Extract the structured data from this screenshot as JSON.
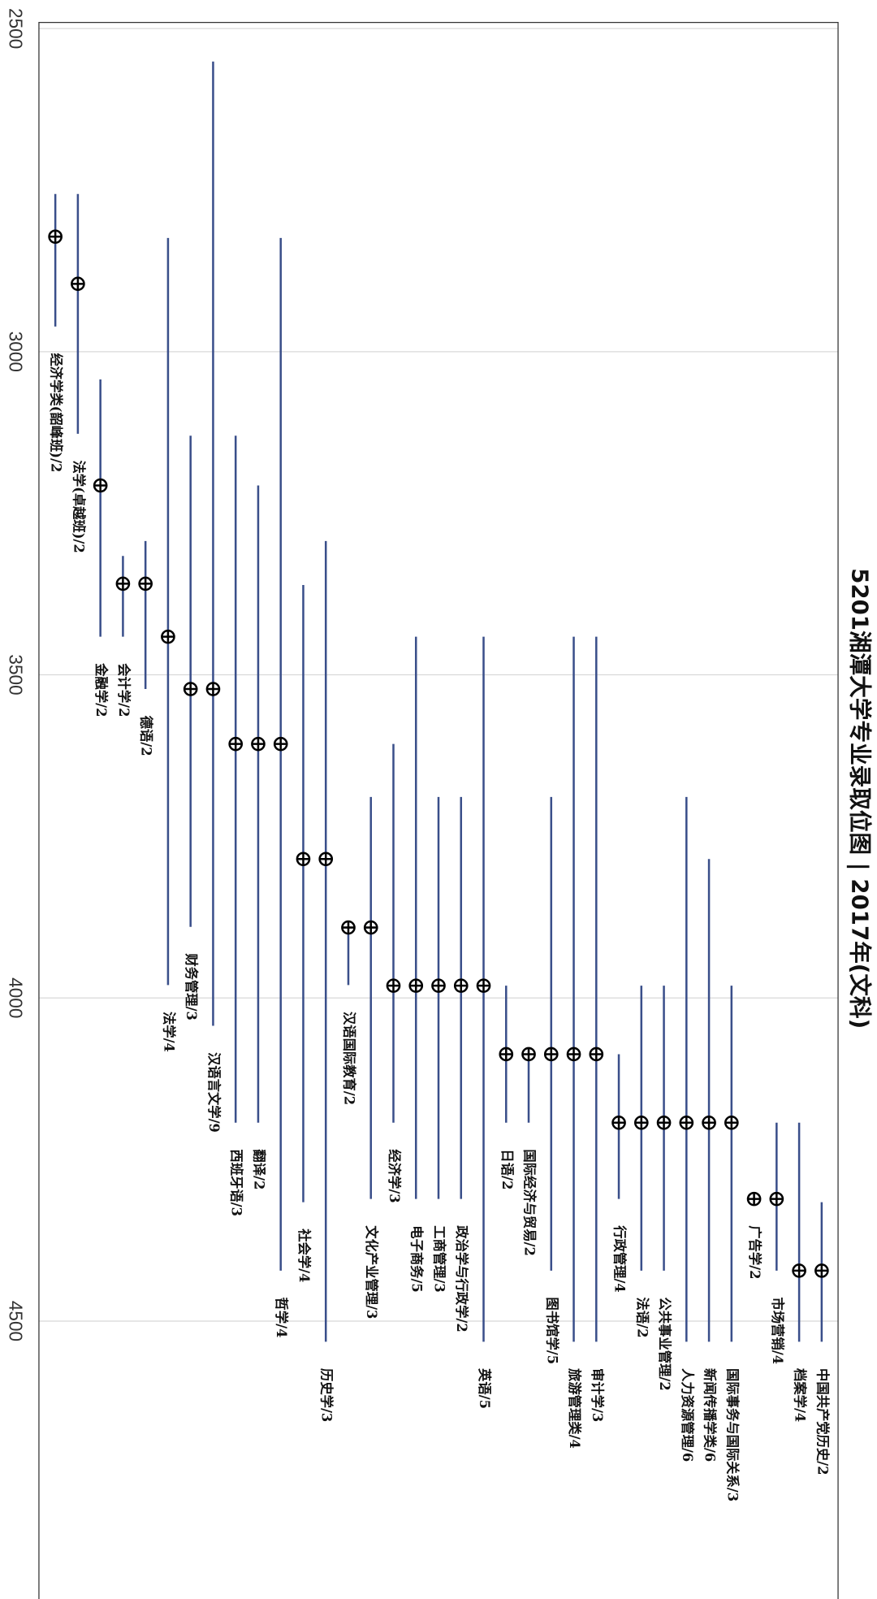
{
  "chart_data": {
    "type": "range",
    "title": "5201湘潭大学专业录取位图 | 2017年(文科)",
    "categories": [
      "经济学类(韶峰班)/2",
      "法学(卓越班)/2",
      "金融学/2",
      "会计学/2",
      "德语/2",
      "法学/4",
      "财务管理/3",
      "汉语言文学/9",
      "西班牙语/3",
      "翻译/2",
      "哲学/4",
      "社会学/4",
      "历史学/3",
      "汉语国际教育/2",
      "文化产业管理/3",
      "经济学/3",
      "电子商务/5",
      "工商管理/3",
      "政治学与行政学/2",
      "英语/5",
      "日语/2",
      "国际经济与贸易/2",
      "图书馆学/5",
      "旅游管理类/4",
      "审计学/3",
      "行政管理/4",
      "法语/2",
      "公共事业管理/2",
      "人力资源管理/6",
      "新闻传播学类/6",
      "国际事务与国际关系/3",
      "广告学/2",
      "市场营销/4",
      "档案学/4",
      "中国共产党历史/2"
    ],
    "values": [
      2822,
      2895,
      3207,
      3359,
      3359,
      3441,
      3522,
      3522,
      3607,
      3607,
      3607,
      3785,
      3785,
      3891,
      3891,
      3981,
      3981,
      3981,
      3981,
      3981,
      4087,
      4087,
      4087,
      4087,
      4087,
      4193,
      4193,
      4193,
      4193,
      4193,
      4193,
      4311,
      4311,
      4422,
      4422
    ],
    "low": [
      2756,
      2756,
      3043,
      3316,
      3293,
      2824,
      3130,
      2551,
      3130,
      3207,
      2824,
      3361,
      3293,
      3891,
      3689,
      3607,
      3441,
      3689,
      3689,
      3441,
      3981,
      4087,
      3689,
      3441,
      3441,
      4087,
      3981,
      3981,
      3689,
      3785,
      3981,
      4311,
      4193,
      4193,
      4316
    ],
    "high": [
      2961,
      3127,
      3441,
      3441,
      3522,
      3980,
      3890,
      4043,
      4193,
      4193,
      4422,
      4316,
      4532,
      3980,
      4311,
      4193,
      4311,
      4311,
      4311,
      4532,
      4193,
      4193,
      4422,
      4532,
      4532,
      4311,
      4422,
      4422,
      4532,
      4532,
      4532,
      4311,
      4422,
      4532,
      4532
    ],
    "line_color": "#3a4f8a",
    "ylim": [
      2500,
      4930
    ],
    "yticks": [
      2500,
      3000,
      3500,
      4000,
      4500
    ],
    "grid": true
  }
}
